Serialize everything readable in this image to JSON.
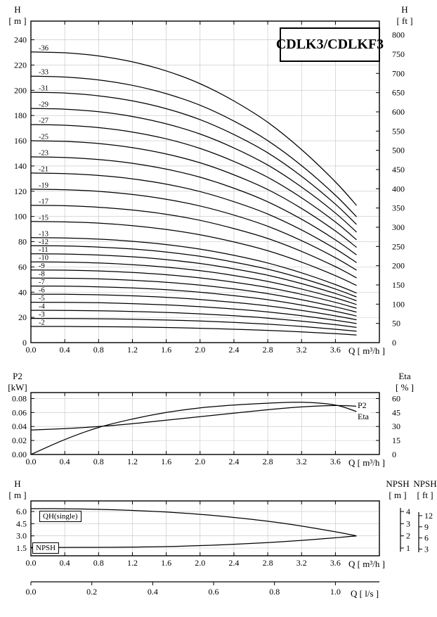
{
  "title": "CDLK3/CDLKF3",
  "labels": {
    "h": "H",
    "m_unit": "[ m ]",
    "ft_unit": "[ ft ]",
    "p2": "P2",
    "kw_unit": "[kW]",
    "eta": "Eta",
    "pct_unit": "[ % ]",
    "npsh": "NPSH",
    "q_m3h": "Q [ m³/h ]",
    "q_ls": "Q [ l/s ]"
  },
  "legend": {
    "p2": "P2",
    "eta": "Eta",
    "qh_single": "QH(single)",
    "npsh": "NPSH"
  },
  "chart_data": [
    {
      "name": "multistage-head-curves",
      "type": "line",
      "title": "CDLK3/CDLKF3",
      "xlabel": "Q [ m³/h ]",
      "ylabel_left": "H [ m ]",
      "ylabel_right": "H [ ft ]",
      "grid": true,
      "xlim": [
        0,
        4.12
      ],
      "ylim_m": [
        0,
        254.8
      ],
      "x_tick_values": [
        0,
        0.4,
        0.8,
        1.2,
        1.6,
        2.0,
        2.4,
        2.8,
        3.2,
        3.6
      ],
      "x_tick_labels": [
        "0.0",
        "0.4",
        "0.8",
        "1.2",
        "1.6",
        "2.0",
        "2.4",
        "2.8",
        "3.2",
        "3.6"
      ],
      "y_ticks_m": [
        0,
        20,
        40,
        60,
        80,
        100,
        120,
        140,
        160,
        180,
        200,
        220,
        240
      ],
      "y_ticks_ft": [
        0,
        50,
        100,
        150,
        200,
        250,
        300,
        350,
        400,
        450,
        500,
        550,
        600,
        650,
        700,
        750,
        800
      ],
      "x": [
        0,
        0.4,
        0.8,
        1.2,
        1.6,
        2.0,
        2.4,
        2.8,
        3.2,
        3.6,
        3.85
      ],
      "series": [
        {
          "label": "-36",
          "stages": 36,
          "head_m": [
            230.4,
            229.7,
            227.2,
            222.5,
            215.3,
            205.2,
            191.5,
            174.6,
            153.0,
            127.4,
            108.7
          ]
        },
        {
          "label": "-33",
          "stages": 33,
          "head_m": [
            211.2,
            210.5,
            208.2,
            203.9,
            197.3,
            188.1,
            175.6,
            160.1,
            140.3,
            116.8,
            99.7
          ]
        },
        {
          "label": "-31",
          "stages": 31,
          "head_m": [
            198.4,
            197.8,
            195.6,
            191.6,
            185.4,
            176.7,
            164.9,
            150.4,
            131.8,
            109.7,
            93.6
          ]
        },
        {
          "label": "-29",
          "stages": 29,
          "head_m": [
            185.6,
            185.0,
            183.0,
            179.2,
            173.4,
            165.3,
            154.3,
            140.7,
            123.3,
            102.7,
            87.6
          ]
        },
        {
          "label": "-27",
          "stages": 27,
          "head_m": [
            172.8,
            172.3,
            170.4,
            166.9,
            161.5,
            153.9,
            143.6,
            131.0,
            114.8,
            95.6,
            81.5
          ]
        },
        {
          "label": "-25",
          "stages": 25,
          "head_m": [
            160.0,
            159.5,
            157.8,
            154.5,
            149.5,
            142.5,
            133.0,
            121.3,
            106.3,
            88.5,
            75.5
          ]
        },
        {
          "label": "-23",
          "stages": 23,
          "head_m": [
            147.2,
            146.7,
            145.1,
            142.1,
            137.5,
            131.1,
            122.4,
            111.6,
            97.8,
            81.4,
            69.5
          ]
        },
        {
          "label": "-21",
          "stages": 21,
          "head_m": [
            134.4,
            134.0,
            132.5,
            129.8,
            125.6,
            119.7,
            111.7,
            101.9,
            89.3,
            74.3,
            63.4
          ]
        },
        {
          "label": "-19",
          "stages": 19,
          "head_m": [
            121.6,
            121.2,
            119.9,
            117.4,
            113.6,
            108.3,
            101.1,
            92.2,
            80.8,
            67.3,
            57.4
          ]
        },
        {
          "label": "-17",
          "stages": 17,
          "head_m": [
            108.8,
            108.5,
            107.3,
            105.1,
            101.7,
            96.9,
            90.4,
            82.5,
            72.3,
            60.2,
            51.3
          ]
        },
        {
          "label": "-15",
          "stages": 15,
          "head_m": [
            96.0,
            95.7,
            94.7,
            92.7,
            89.7,
            85.5,
            79.8,
            72.8,
            63.8,
            53.1,
            45.3
          ]
        },
        {
          "label": "-13",
          "stages": 13,
          "head_m": [
            83.2,
            82.9,
            82.0,
            80.3,
            77.7,
            74.1,
            69.2,
            63.1,
            55.3,
            46.0,
            39.3
          ]
        },
        {
          "label": "-12",
          "stages": 12,
          "head_m": [
            76.8,
            76.6,
            75.7,
            74.2,
            71.8,
            68.4,
            63.8,
            58.2,
            51.0,
            42.5,
            36.2
          ]
        },
        {
          "label": "-11",
          "stages": 11,
          "head_m": [
            70.4,
            70.2,
            69.4,
            68.0,
            65.8,
            62.7,
            58.5,
            53.4,
            46.8,
            38.9,
            33.2
          ]
        },
        {
          "label": "-10",
          "stages": 10,
          "head_m": [
            64.0,
            63.8,
            63.1,
            61.8,
            59.8,
            57.0,
            53.2,
            48.5,
            42.5,
            35.4,
            30.2
          ]
        },
        {
          "label": "-9",
          "stages": 9,
          "head_m": [
            57.6,
            57.4,
            56.8,
            55.6,
            53.8,
            51.3,
            47.9,
            43.7,
            38.3,
            31.9,
            27.2
          ]
        },
        {
          "label": "-8",
          "stages": 8,
          "head_m": [
            51.2,
            51.0,
            50.5,
            49.4,
            47.8,
            45.6,
            42.6,
            38.8,
            34.0,
            28.3,
            24.2
          ]
        },
        {
          "label": "-7",
          "stages": 7,
          "head_m": [
            44.8,
            44.7,
            44.2,
            43.3,
            41.9,
            39.9,
            37.2,
            34.0,
            29.8,
            24.8,
            21.1
          ]
        },
        {
          "label": "-6",
          "stages": 6,
          "head_m": [
            38.4,
            38.3,
            37.9,
            37.1,
            35.9,
            34.2,
            31.9,
            29.1,
            25.5,
            21.2,
            18.1
          ]
        },
        {
          "label": "-5",
          "stages": 5,
          "head_m": [
            32.0,
            31.9,
            31.6,
            30.9,
            29.9,
            28.5,
            26.6,
            24.3,
            21.3,
            17.7,
            15.1
          ]
        },
        {
          "label": "-4",
          "stages": 4,
          "head_m": [
            25.6,
            25.5,
            25.2,
            24.7,
            23.9,
            22.8,
            21.3,
            19.4,
            17.0,
            14.2,
            12.1
          ]
        },
        {
          "label": "-3",
          "stages": 3,
          "head_m": [
            19.2,
            19.1,
            18.9,
            18.5,
            17.9,
            17.1,
            16.0,
            14.6,
            12.8,
            10.6,
            9.1
          ]
        },
        {
          "label": "-2",
          "stages": 2,
          "head_m": [
            12.8,
            12.8,
            12.6,
            12.4,
            12.0,
            11.4,
            10.6,
            9.7,
            8.5,
            7.1,
            6.0
          ]
        }
      ]
    },
    {
      "name": "power-efficiency",
      "type": "line",
      "xlabel": "Q [ m³/h ]",
      "ylabel_left": "P2 [kW]",
      "ylabel_right": "Eta [ % ]",
      "grid": true,
      "xlim": [
        0,
        4.12
      ],
      "ylim_kw": [
        0,
        0.0885
      ],
      "ylim_eta": [
        0,
        66.375
      ],
      "x_tick_values": [
        0,
        0.4,
        0.8,
        1.2,
        1.6,
        2.0,
        2.4,
        2.8,
        3.2,
        3.6
      ],
      "x_tick_labels": [
        "0.0",
        "0.4",
        "0.8",
        "1.2",
        "1.6",
        "2.0",
        "2.4",
        "2.8",
        "3.2",
        "3.6"
      ],
      "y_ticks_kw_values": [
        0,
        0.02,
        0.04,
        0.06,
        0.08
      ],
      "y_ticks_kw_labels": [
        "0.00",
        "0.02",
        "0.04",
        "0.06",
        "0.08"
      ],
      "y_ticks_eta": [
        0,
        15,
        30,
        45,
        60
      ],
      "x": [
        0,
        0.4,
        0.8,
        1.2,
        1.6,
        2.0,
        2.4,
        2.8,
        3.2,
        3.6,
        3.85
      ],
      "p2_kw": [
        0.035,
        0.037,
        0.04,
        0.044,
        0.049,
        0.054,
        0.059,
        0.064,
        0.068,
        0.07,
        0.069
      ],
      "eta_pct": [
        0,
        16,
        29,
        38,
        45,
        50,
        53,
        55,
        56,
        53,
        46
      ],
      "legend_labels": [
        "P2",
        "Eta"
      ],
      "legend_position": "right"
    },
    {
      "name": "single-stage-npsh",
      "type": "line",
      "xlabel": "Q [ m³/h ]",
      "xlabel_ls": "Q [ l/s ]",
      "ylabel_left": "H [ m ]",
      "ylabel_right_1": "NPSH [ m ]",
      "ylabel_right_2": "NPSH [ ft ]",
      "grid": true,
      "xlim": [
        0,
        4.12
      ],
      "ylim_h": [
        0.548,
        7.3
      ],
      "x_tick_values": [
        0,
        0.4,
        0.8,
        1.2,
        1.6,
        2.0,
        2.4,
        2.8,
        3.2,
        3.6
      ],
      "x_tick_labels": [
        "0.0",
        "0.4",
        "0.8",
        "1.2",
        "1.6",
        "2.0",
        "2.4",
        "2.8",
        "3.2",
        "3.6"
      ],
      "y_ticks_h_values": [
        6.0,
        4.5,
        3.0,
        1.5
      ],
      "y_ticks_h_labels": [
        "6.0",
        "4.5",
        "3.0",
        "1.5"
      ],
      "npsh_m_ticks": [
        4,
        3,
        2,
        1
      ],
      "npsh_ft_ticks": [
        12,
        9,
        6,
        3
      ],
      "ls_tick_values": [
        0,
        0.2,
        0.4,
        0.6,
        0.8,
        1.0
      ],
      "ls_tick_labels": [
        "0.0",
        "0.2",
        "0.4",
        "0.6",
        "0.8",
        "1.0"
      ],
      "x": [
        0,
        0.4,
        0.8,
        1.2,
        1.6,
        2.0,
        2.4,
        2.8,
        3.2,
        3.6,
        3.85
      ],
      "qh_single_m": [
        6.35,
        6.33,
        6.26,
        6.13,
        5.93,
        5.65,
        5.27,
        4.8,
        4.21,
        3.5,
        3.0
      ],
      "npsh_m": [
        1.05,
        1.05,
        1.06,
        1.08,
        1.12,
        1.2,
        1.31,
        1.45,
        1.63,
        1.84,
        2.0
      ],
      "legend_labels": [
        "QH(single)",
        "NPSH"
      ]
    }
  ]
}
